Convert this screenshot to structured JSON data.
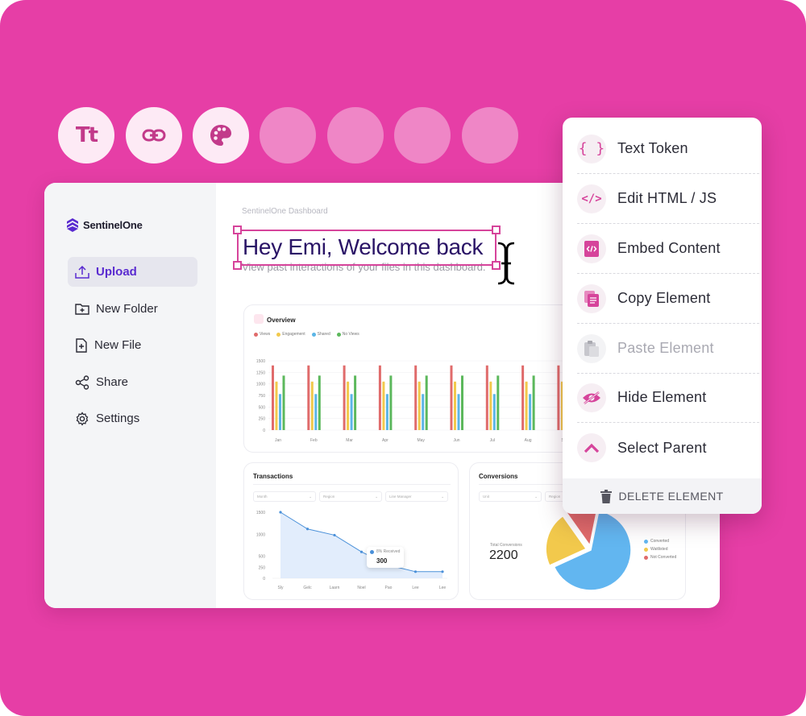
{
  "toolbar": {
    "buttons": [
      {
        "icon": "text-size-icon",
        "label": "Tt",
        "state": "active"
      },
      {
        "icon": "link-icon",
        "state": "active"
      },
      {
        "icon": "palette-icon",
        "state": "active"
      },
      {
        "state": "placeholder"
      },
      {
        "state": "placeholder"
      },
      {
        "state": "placeholder"
      },
      {
        "state": "placeholder"
      }
    ]
  },
  "dashboard": {
    "brand": "SentinelOne",
    "breadcrumb": "SentinelOne Dashboard",
    "headline": "Hey Emi, Welcome back",
    "subtitle": "View past interactions of your files in this dashboard.",
    "nav": [
      {
        "label": "Upload",
        "icon": "upload-icon",
        "active": true
      },
      {
        "label": "New Folder",
        "icon": "new-folder-icon"
      },
      {
        "label": "New File",
        "icon": "new-file-icon"
      },
      {
        "label": "Share",
        "icon": "share-icon"
      },
      {
        "label": "Settings",
        "icon": "gear-icon"
      }
    ],
    "overview": {
      "title": "Overview",
      "legend": [
        "Views",
        "Engagement",
        "Shared",
        "No Views"
      ]
    },
    "transactions": {
      "title": "Transactions",
      "filters": [
        "Month",
        "Region",
        "Line Manager"
      ],
      "tooltip_label": "8% Received",
      "tooltip_value": "300"
    },
    "conversions": {
      "title": "Conversions",
      "filters": [
        "Unit",
        "Region"
      ],
      "total_label": "Total Conversions",
      "total_value": "2200",
      "legend": [
        "Converted",
        "Waitlisted",
        "Not Converted"
      ]
    }
  },
  "chart_data": [
    {
      "type": "bar",
      "title": "Overview",
      "categories": [
        "Jan",
        "Feb",
        "Mar",
        "Apr",
        "May",
        "Jun",
        "Jul",
        "Aug",
        "Se"
      ],
      "ylim": [
        0,
        1500
      ],
      "yticks": [
        0,
        250,
        500,
        750,
        1000,
        1250,
        1500
      ],
      "series": [
        {
          "name": "Views",
          "color": "#e06b6b",
          "values": [
            1400,
            1400,
            1400,
            1400,
            1400,
            1400,
            1400,
            1400,
            1400
          ]
        },
        {
          "name": "Engagement",
          "color": "#f2c94c",
          "values": [
            1050,
            1050,
            1050,
            1050,
            1050,
            1050,
            1050,
            1050,
            1050
          ]
        },
        {
          "name": "Shared",
          "color": "#5bb5e6",
          "values": [
            780,
            780,
            780,
            780,
            780,
            780,
            780,
            780,
            780
          ]
        },
        {
          "name": "No Views",
          "color": "#5cb85c",
          "values": [
            1180,
            1180,
            1180,
            1180,
            1180,
            1180,
            1180,
            1180,
            1180
          ]
        }
      ]
    },
    {
      "type": "area",
      "title": "Transactions",
      "categories": [
        "Sly",
        "Gelc",
        "Laarn",
        "Noel",
        "Pao",
        "Lee",
        "Lee"
      ],
      "ylim": [
        0,
        1500
      ],
      "yticks": [
        0,
        250,
        500,
        750,
        1000,
        1250,
        1500
      ],
      "series": [
        {
          "color": "#4a90d9",
          "values": [
            1500,
            1120,
            980,
            600,
            300,
            150,
            150
          ]
        }
      ]
    },
    {
      "type": "pie",
      "title": "Conversions",
      "labels": [
        "Converted",
        "Waitlisted",
        "Not Converted"
      ],
      "values": [
        65,
        22,
        13
      ],
      "colors": [
        "#62b6f0",
        "#f2c94c",
        "#e06b6b"
      ]
    }
  ],
  "menu": {
    "items": [
      {
        "label": "Text Token",
        "icon": "braces-icon"
      },
      {
        "label": "Edit HTML / JS",
        "icon": "code-icon"
      },
      {
        "label": "Embed Content",
        "icon": "embed-icon"
      },
      {
        "label": "Copy Element",
        "icon": "copy-icon"
      },
      {
        "label": "Paste Element",
        "icon": "paste-icon",
        "disabled": true
      },
      {
        "label": "Hide Element",
        "icon": "eye-off-icon"
      },
      {
        "label": "Select Parent",
        "icon": "chevron-up-icon"
      }
    ],
    "delete_label": "DELETE ELEMENT"
  },
  "colors": {
    "background": "#e63ea6",
    "accent": "#d6449b",
    "brand_purple": "#5a2bd0"
  }
}
